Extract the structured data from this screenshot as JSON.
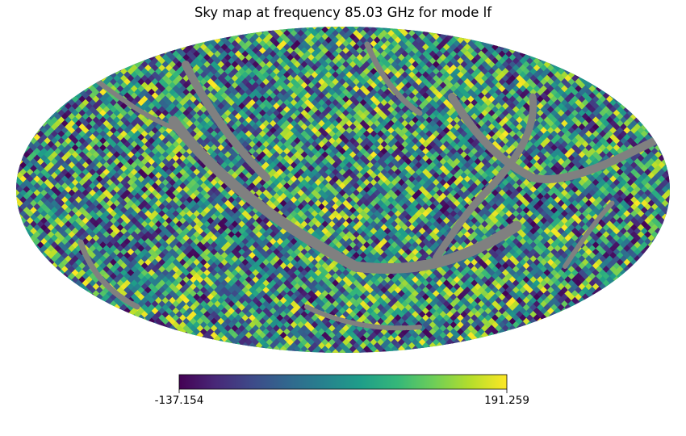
{
  "chart_data": {
    "type": "heatmap",
    "subtype": "healpix-mollweide-sky-map",
    "title": "Sky map at frequency 85.03 GHz for mode lf",
    "frequency_ghz": 85.03,
    "mode": "lf",
    "colormap": "viridis",
    "colorbar": {
      "orientation": "horizontal",
      "min": -137.154,
      "max": 191.259,
      "min_label": "-137.154",
      "max_label": "191.259"
    },
    "masked_color": "#808080",
    "pixel_values": "random per-pixel values (noise-like), uniformly spread between colorbar min and max",
    "masked_regions": "diagonal gray bands crossing the map (unobserved pixels)"
  },
  "colors": {
    "mask": "#808080",
    "viridis": [
      "#440154",
      "#482878",
      "#3e4a89",
      "#31688e",
      "#26828e",
      "#1f9e89",
      "#35b779",
      "#6ece58",
      "#b5de2b",
      "#fde725"
    ]
  }
}
